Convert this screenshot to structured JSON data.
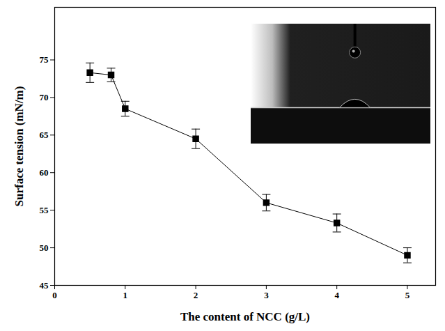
{
  "chart_data": {
    "type": "line",
    "x_label": "The content of NCC (g/L)",
    "y_label": "Surface tension (mN/m)",
    "x": [
      0.5,
      0.8,
      1,
      2,
      3,
      4,
      5
    ],
    "values": [
      73.3,
      73.0,
      68.5,
      64.5,
      56.0,
      53.3,
      49.0
    ],
    "errors": [
      1.3,
      0.9,
      1.0,
      1.3,
      1.1,
      1.2,
      1.0
    ],
    "color": "#000000",
    "marker": "square",
    "line_style": "solid",
    "xlim": [
      0,
      5.4
    ],
    "xticks": [
      0,
      1,
      2,
      3,
      4,
      5
    ],
    "ylim": [
      45,
      82
    ],
    "yticks": [
      45,
      50,
      55,
      60,
      65,
      70,
      75
    ],
    "grid": false
  }
}
